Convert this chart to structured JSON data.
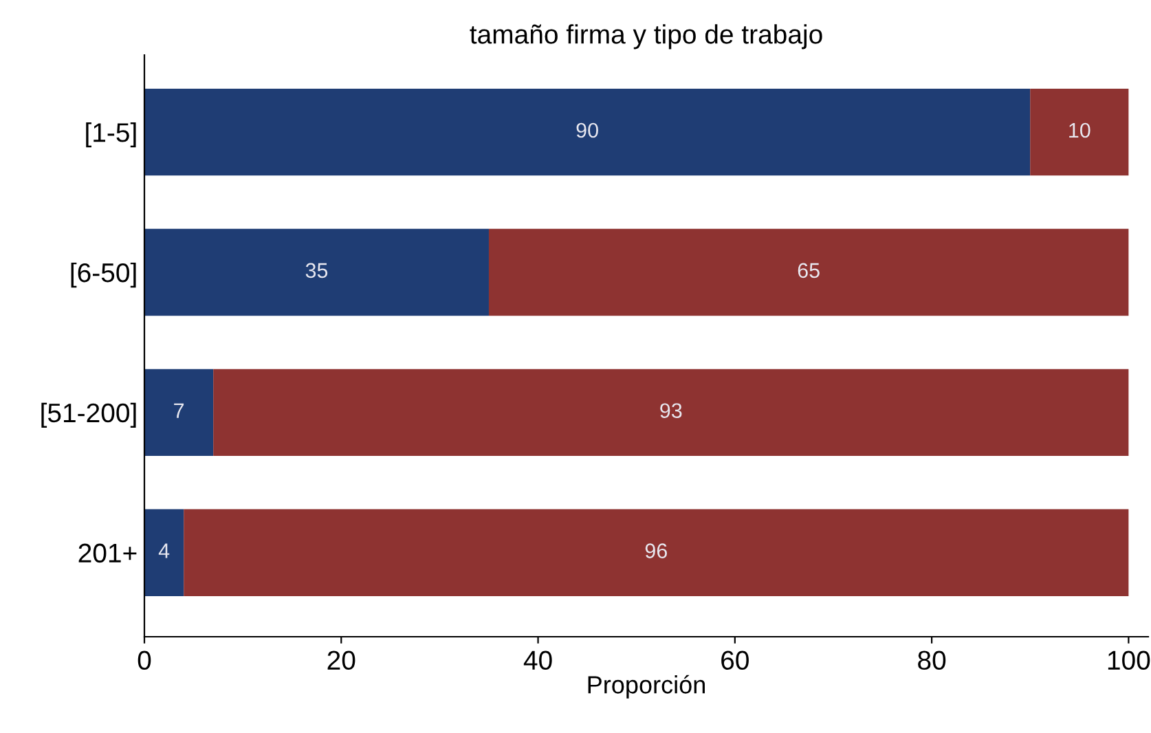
{
  "chart_data": {
    "type": "bar",
    "orientation": "horizontal",
    "stacked": true,
    "title": "tamaño firma y tipo de trabajo",
    "xlabel": "Proporción",
    "categories": [
      "[1-5]",
      "[6-50]",
      "[51-200]",
      "201+"
    ],
    "series": [
      {
        "color": "#1f3d74",
        "values": [
          90,
          35,
          7,
          4
        ]
      },
      {
        "color": "#8e3331",
        "values": [
          10,
          65,
          93,
          96
        ]
      }
    ],
    "data_labels": true,
    "xlim": [
      0,
      102
    ],
    "xticks": [
      0,
      20,
      40,
      60,
      80,
      100
    ],
    "grid": false,
    "legend": false
  }
}
